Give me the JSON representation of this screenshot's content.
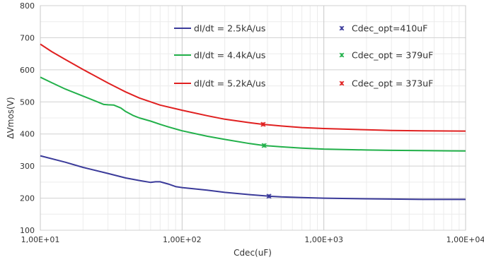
{
  "chart_data": {
    "type": "line",
    "title": "",
    "xlabel": "Cdec(uF)",
    "ylabel": "ΔVmos(V)",
    "xscale": "log",
    "xlim": [
      10,
      10000
    ],
    "ylim": [
      100,
      800
    ],
    "grid": true,
    "legend": "top-right, two columns",
    "x_ticks": [
      "1,00E+01",
      "1,00E+02",
      "1,00E+03",
      "1,00E+04"
    ],
    "y_ticks": [
      "100",
      "200",
      "300",
      "400",
      "500",
      "600",
      "700",
      "800"
    ],
    "series": [
      {
        "name": "dI/dt = 2.5kA/us",
        "color": "#3b3b9a",
        "points": [
          [
            10,
            332
          ],
          [
            15,
            312
          ],
          [
            20,
            296
          ],
          [
            30,
            277
          ],
          [
            40,
            263
          ],
          [
            50,
            255
          ],
          [
            60,
            249
          ],
          [
            65,
            251
          ],
          [
            70,
            251
          ],
          [
            80,
            244
          ],
          [
            90,
            236
          ],
          [
            100,
            233
          ],
          [
            150,
            225
          ],
          [
            200,
            218
          ],
          [
            300,
            211
          ],
          [
            410,
            206
          ],
          [
            500,
            204
          ],
          [
            700,
            202
          ],
          [
            1000,
            200
          ],
          [
            2000,
            198
          ],
          [
            3000,
            197
          ],
          [
            5000,
            196
          ],
          [
            10000,
            196
          ]
        ],
        "marker": {
          "label": "Cdec_opt=410uF",
          "x": 410,
          "y": 206
        }
      },
      {
        "name": "dI/dt = 4.4kA/us",
        "color": "#22b04a",
        "points": [
          [
            10,
            577
          ],
          [
            12,
            560
          ],
          [
            15,
            540
          ],
          [
            20,
            518
          ],
          [
            25,
            501
          ],
          [
            28,
            492
          ],
          [
            30,
            491
          ],
          [
            33,
            490
          ],
          [
            37,
            481
          ],
          [
            40,
            470
          ],
          [
            45,
            458
          ],
          [
            50,
            450
          ],
          [
            60,
            440
          ],
          [
            70,
            430
          ],
          [
            80,
            422
          ],
          [
            100,
            410
          ],
          [
            150,
            393
          ],
          [
            200,
            383
          ],
          [
            300,
            370
          ],
          [
            379,
            364
          ],
          [
            500,
            360
          ],
          [
            700,
            356
          ],
          [
            1000,
            353
          ],
          [
            2000,
            350
          ],
          [
            3000,
            349
          ],
          [
            5000,
            348
          ],
          [
            10000,
            347
          ]
        ],
        "marker": {
          "label": "Cdec_opt = 379uF",
          "x": 379,
          "y": 364
        }
      },
      {
        "name": "dI/dt = 5.2kA/us",
        "color": "#e02020",
        "points": [
          [
            10,
            680
          ],
          [
            12,
            657
          ],
          [
            15,
            632
          ],
          [
            20,
            601
          ],
          [
            25,
            578
          ],
          [
            30,
            559
          ],
          [
            40,
            531
          ],
          [
            50,
            512
          ],
          [
            70,
            490
          ],
          [
            100,
            474
          ],
          [
            150,
            457
          ],
          [
            200,
            446
          ],
          [
            300,
            435
          ],
          [
            373,
            430
          ],
          [
            500,
            425
          ],
          [
            700,
            420
          ],
          [
            1000,
            417
          ],
          [
            2000,
            413
          ],
          [
            3000,
            411
          ],
          [
            5000,
            410
          ],
          [
            10000,
            409
          ]
        ],
        "marker": {
          "label": "Cdec_opt = 373uF",
          "x": 373,
          "y": 430
        }
      }
    ]
  }
}
